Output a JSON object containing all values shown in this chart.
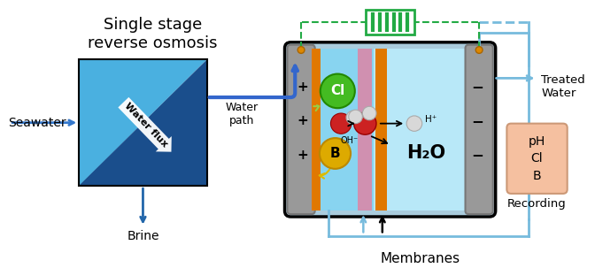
{
  "fig_width": 6.72,
  "fig_height": 3.03,
  "bg_color": "#ffffff",
  "title_text": "Single stage\nreverse osmosis",
  "seawater_text": "Seawater",
  "brine_text": "Brine",
  "treated_water_text": "Treated\nWater",
  "recording_text": "pH\nCl\nB",
  "recording_label": "Recording",
  "membranes_text": "Membranes",
  "water_path_text": "Water\npath",
  "water_flux_text": "Water flux",
  "h2o_text": "H₂O",
  "oh_text": "OH⁻",
  "h_text": "H⁺",
  "cl_text": "Cl",
  "b_text": "B",
  "gray_electrode": "#999999",
  "gray_electrode_dark": "#777777",
  "dark_blue_ro": "#1a4e8c",
  "medium_blue_ro": "#4ab0e0",
  "light_blue_inner": "#88d4f0",
  "sky_blue_right": "#b8e8f8",
  "pink_membrane": "#d090b0",
  "orange_membrane": "#e07800",
  "green_cl": "#44bb22",
  "yellow_b": "#ddaa00",
  "red_oxygen": "#cc2222",
  "white_hydrogen": "#d8d8d8",
  "arrow_blue": "#3366cc",
  "arrow_light_blue": "#77bbdd",
  "dashed_green": "#22aa44",
  "seawater_arrow": "#3377cc",
  "brine_arrow": "#2266aa"
}
